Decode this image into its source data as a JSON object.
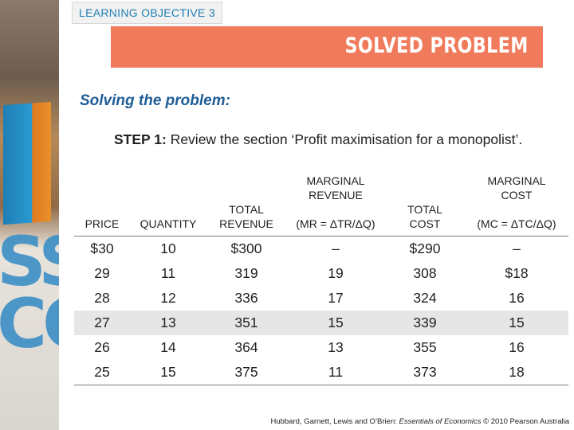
{
  "header": {
    "objective_tab": "LEARNING OBJECTIVE 3",
    "banner_title": "SOLVED PROBLEM"
  },
  "content": {
    "heading": "Solving the problem:",
    "step_label": "STEP 1:",
    "step_text": " Review the section ‘Profit maximisation for a monopolist’."
  },
  "table": {
    "columns": [
      {
        "line1": "",
        "line2": "",
        "line3": "PRICE"
      },
      {
        "line1": "",
        "line2": "",
        "line3": "QUANTITY"
      },
      {
        "line1": "",
        "line2": "TOTAL",
        "line3": "REVENUE"
      },
      {
        "line1": "MARGINAL",
        "line2": "REVENUE",
        "line3": "(MR = ΔTR/ΔQ)"
      },
      {
        "line1": "",
        "line2": "TOTAL",
        "line3": "COST"
      },
      {
        "line1": "MARGINAL",
        "line2": "COST",
        "line3": "(MC = ΔTC/ΔQ)"
      }
    ],
    "rows": [
      [
        "$30",
        "10",
        "$300",
        "–",
        "$290",
        "–"
      ],
      [
        "29",
        "11",
        "319",
        "19",
        "308",
        "$18"
      ],
      [
        "28",
        "12",
        "336",
        "17",
        "324",
        "16"
      ],
      [
        "27",
        "13",
        "351",
        "15",
        "339",
        "15"
      ],
      [
        "26",
        "14",
        "364",
        "13",
        "355",
        "16"
      ],
      [
        "25",
        "15",
        "375",
        "11",
        "373",
        "18"
      ]
    ]
  },
  "footer": {
    "prefix": "Hubbard, Garnett, Lewis and O’Brien: ",
    "book_title": "Essentials of Economics",
    "suffix": " © 2010 Pearson Australia"
  },
  "decor": {
    "side_letters": "SS CO"
  },
  "colors": {
    "banner": "#f07b5c",
    "heading": "#1f5d96",
    "objective_tab_text": "#1f7fb5",
    "shaded_row": "#e6e6e6"
  }
}
